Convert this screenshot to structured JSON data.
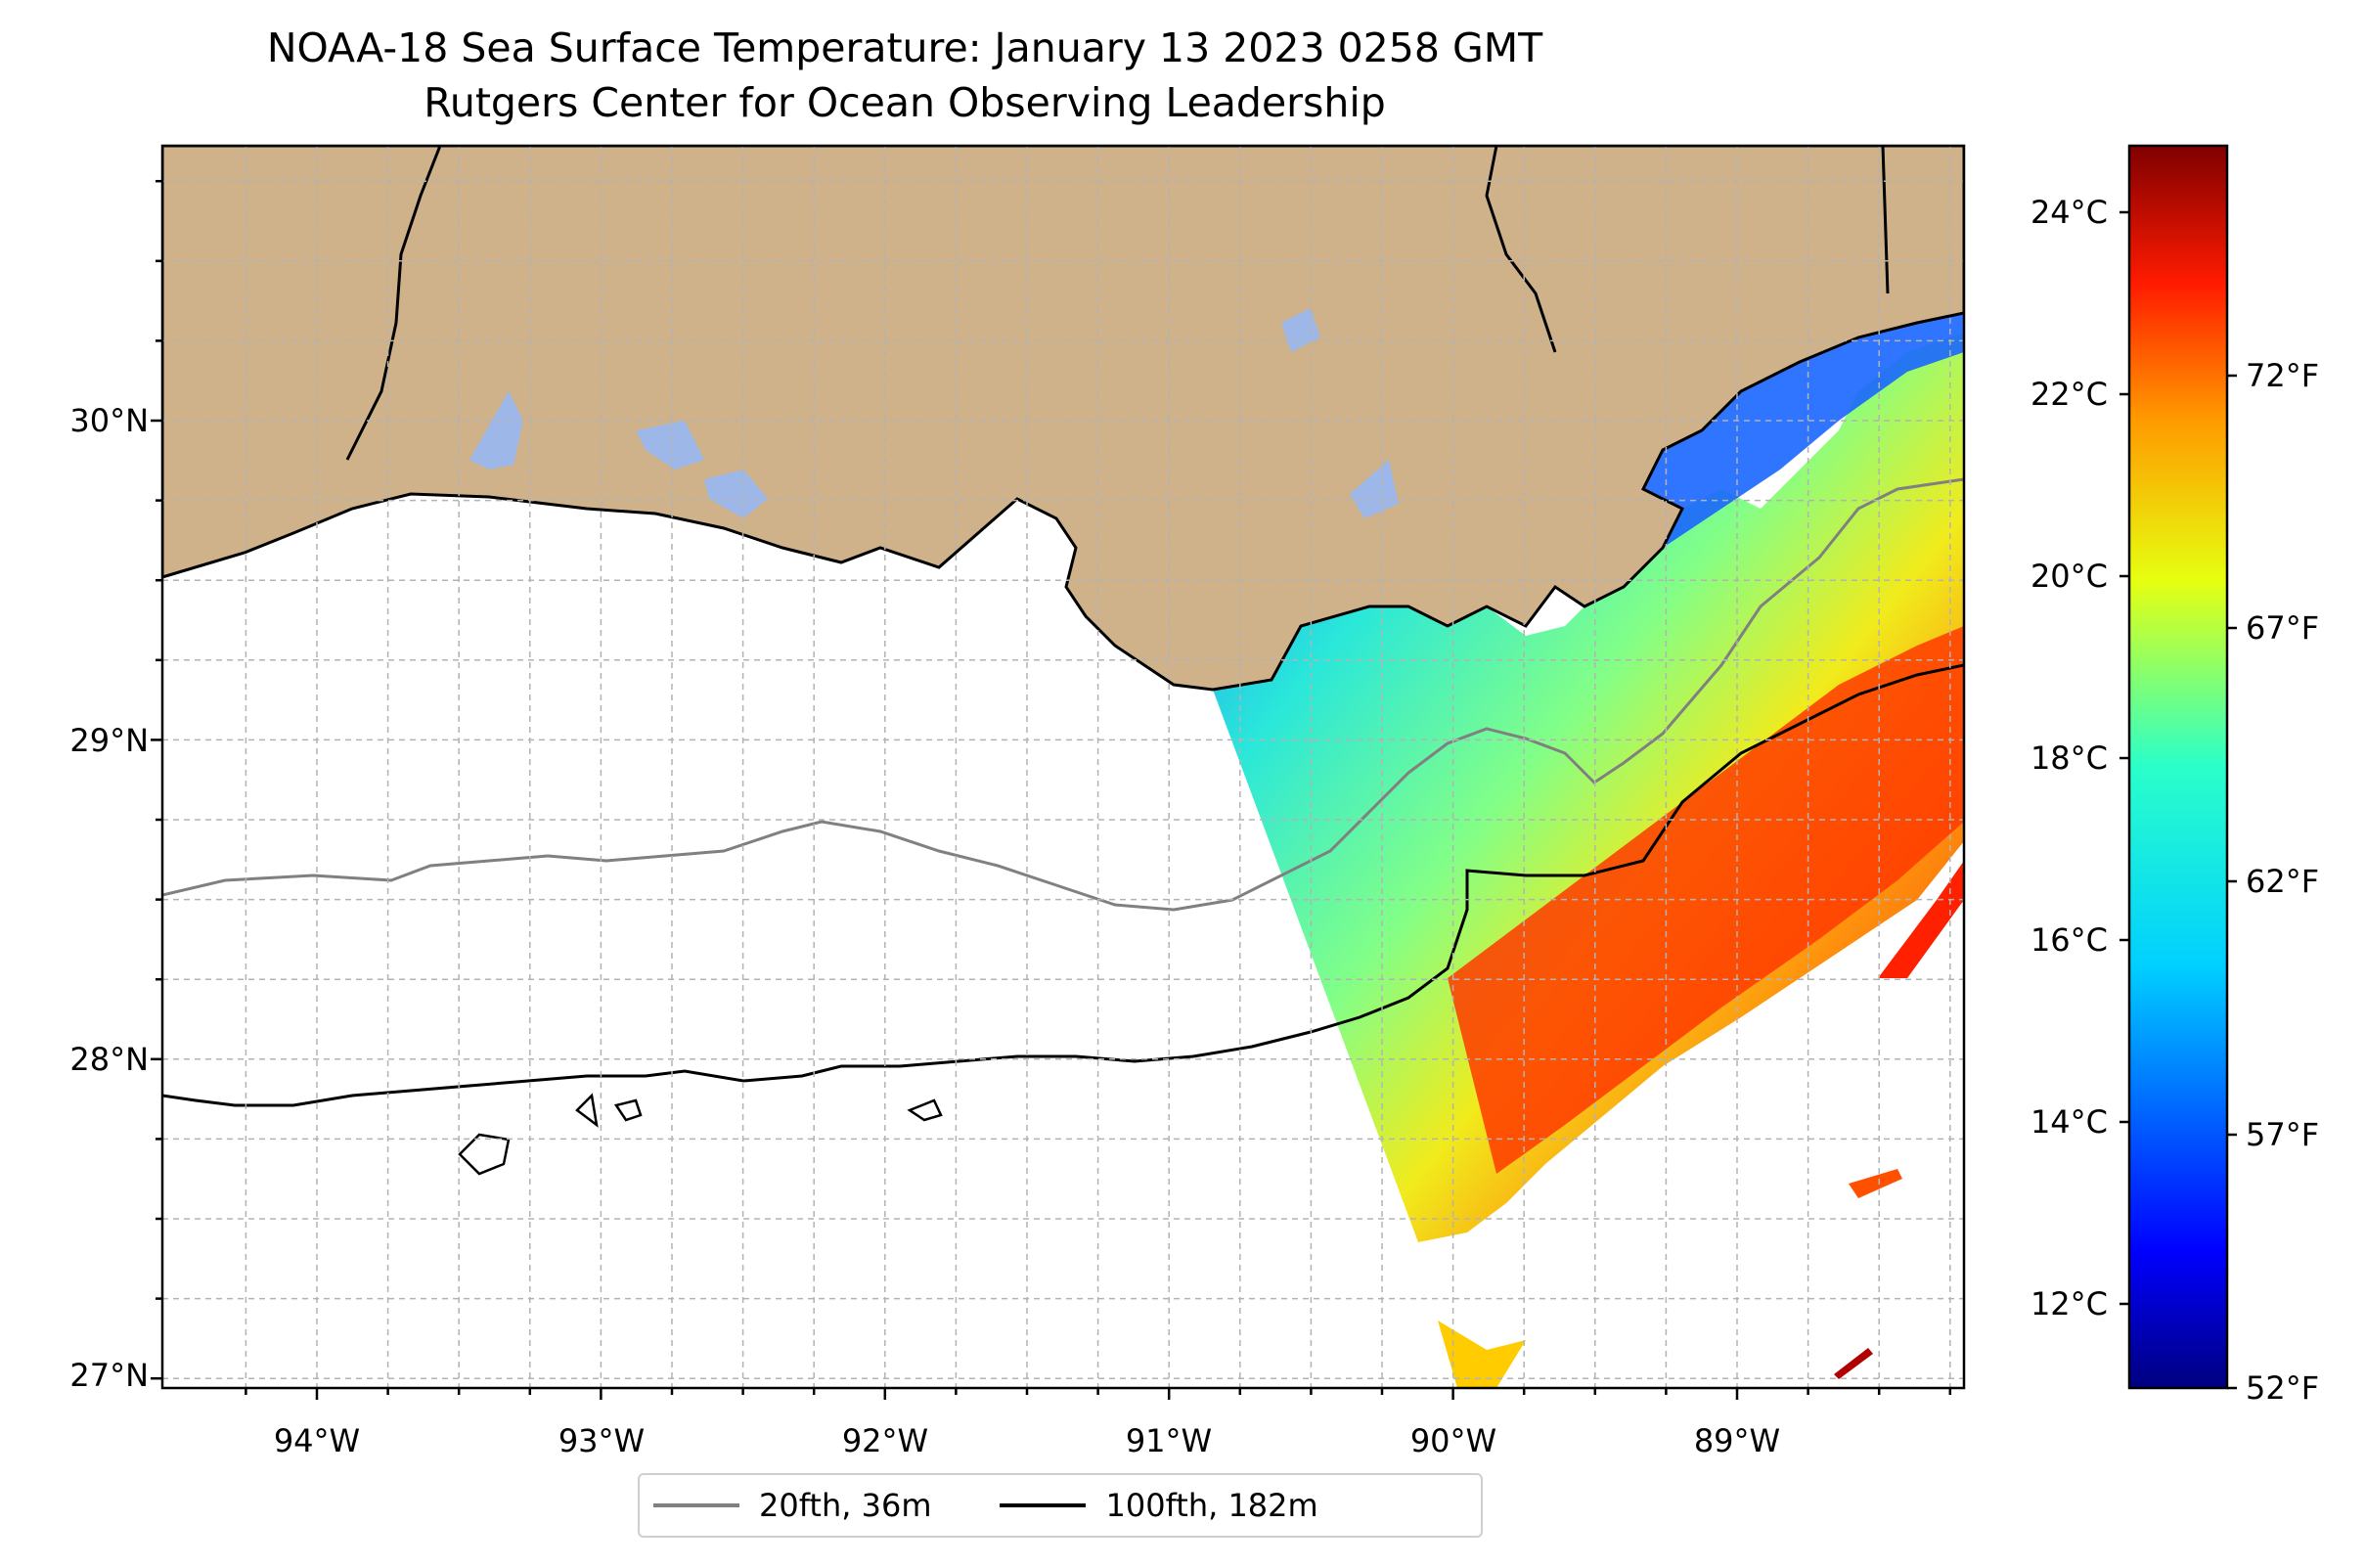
{
  "title": "NOAA-18 Sea Surface Temperature: January 13 2023 0258 GMT",
  "subtitle": "Rutgers Center for Ocean Observing Leadership",
  "map": {
    "lon_range": [
      -94.55,
      -88.2
    ],
    "lat_range": [
      26.93,
      30.84
    ],
    "lon_ticks": [
      "94°W",
      "93°W",
      "92°W",
      "91°W",
      "90°W",
      "89°W"
    ],
    "lat_ticks": [
      "30°N",
      "29°N",
      "28°N",
      "27°N"
    ],
    "land_color": "#cfb28a",
    "lake_color": "#9db8e8"
  },
  "colorbar": {
    "celsius_ticks": [
      "12°C",
      "14°C",
      "16°C",
      "18°C",
      "20°C",
      "22°C",
      "24°C"
    ],
    "fahrenheit_ticks": [
      "52°F",
      "57°F",
      "62°F",
      "67°F",
      "72°F"
    ],
    "colormap": "jet"
  },
  "legend": {
    "items": [
      {
        "label": "20fth, 36m",
        "color": "#808080"
      },
      {
        "label": "100fth, 182m",
        "color": "#000000"
      }
    ]
  }
}
